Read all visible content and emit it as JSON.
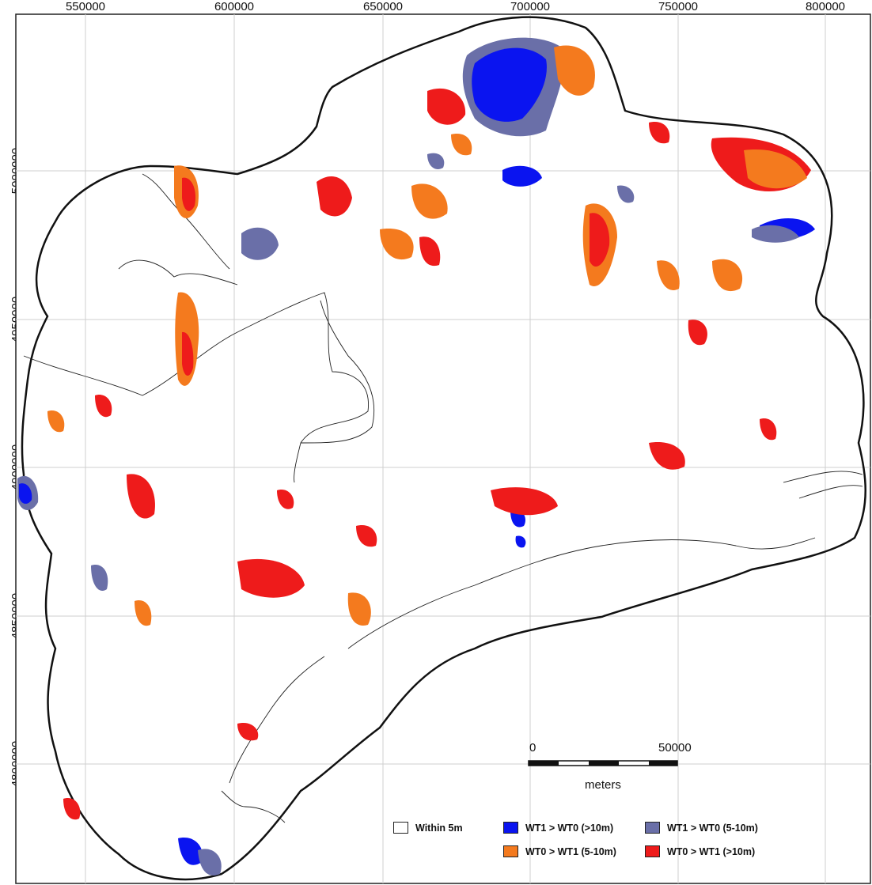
{
  "map": {
    "x_ticks": [
      "550000",
      "600000",
      "650000",
      "700000",
      "750000",
      "800000"
    ],
    "y_ticks": [
      "5000000",
      "4950000",
      "4900000",
      "4850000",
      "4800000"
    ]
  },
  "scale_bar": {
    "start_label": "0",
    "end_label": "50000",
    "unit_label": "meters"
  },
  "legend": {
    "items": [
      {
        "label": "Within 5m",
        "color": "#ffffff"
      },
      {
        "label": "WT1 > WT0 (>10m)",
        "color": "#0a14f0"
      },
      {
        "label": "WT1 > WT0 (5-10m)",
        "color": "#6a6fa8"
      },
      {
        "label": "WT0 > WT1 (5-10m)",
        "color": "#f47a1e"
      },
      {
        "label": "WT0 > WT1 (>10m)",
        "color": "#ee1b1b"
      }
    ]
  }
}
